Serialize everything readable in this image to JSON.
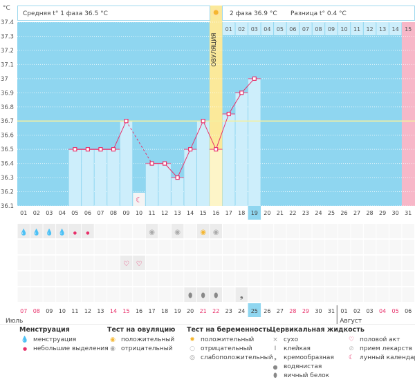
{
  "header": {
    "unit": "°C",
    "phase1": "Средняя t° 1 фаза 36.5 °C",
    "phase2": "2 фаза 36.9 °C",
    "diff": "Разница t° 0.4 °C",
    "ovulation_label": "ОВУЛЯЦИЯ"
  },
  "colors": {
    "plot_bg": "#8fd6f0",
    "bar": "#cdeefb",
    "line": "#e8306a",
    "coverline": "#f5f0a0",
    "ovulation": "#fbe99a",
    "pink": "#f7b7c8",
    "highlight": "#8fd6f0",
    "weekend": "#e8306a"
  },
  "chart_data": {
    "type": "line",
    "ylim": [
      36.1,
      37.4
    ],
    "yticks": [
      "37.4",
      "37.3",
      "37.2",
      "37.1",
      "37",
      "36.9",
      "36.8",
      "36.7",
      "36.6",
      "36.5",
      "36.4",
      "36.3",
      "36.2",
      "36.1"
    ],
    "coverline": 36.7,
    "ovulation_day": "16",
    "highlight_day": "19",
    "days": [
      "01",
      "02",
      "03",
      "04",
      "05",
      "06",
      "07",
      "08",
      "09",
      "10",
      "11",
      "12",
      "13",
      "14",
      "15",
      "16",
      "17",
      "18",
      "19",
      "20",
      "21",
      "22",
      "23",
      "24",
      "25",
      "26",
      "27",
      "28",
      "29",
      "30",
      "31"
    ],
    "temps": [
      null,
      null,
      null,
      null,
      36.5,
      36.5,
      36.5,
      36.5,
      36.7,
      null,
      36.4,
      36.4,
      36.3,
      36.5,
      36.7,
      36.5,
      36.75,
      36.9,
      37.0,
      null,
      null,
      null,
      null,
      null,
      null,
      null,
      null,
      null,
      null,
      null,
      null
    ],
    "dashed_segment": [
      "09",
      "11"
    ],
    "phase2_days": [
      "01",
      "02",
      "03",
      "04",
      "05",
      "06",
      "07",
      "08",
      "09",
      "10",
      "11",
      "12",
      "13",
      "14",
      "15"
    ]
  },
  "icon_rows": [
    [
      {
        "day": "01",
        "icon": "menstruation-icon"
      },
      {
        "day": "02",
        "icon": "menstruation-icon"
      },
      {
        "day": "03",
        "icon": "menstruation-icon"
      },
      {
        "day": "04",
        "icon": "menstruation-icon"
      },
      {
        "day": "05",
        "icon": "spotting-icon"
      },
      {
        "day": "06",
        "icon": "spotting-icon"
      },
      {
        "day": "11",
        "icon": "ovulation-test-negative-icon"
      },
      {
        "day": "13",
        "icon": "ovulation-test-negative-icon"
      },
      {
        "day": "15",
        "icon": "ovulation-test-positive-icon"
      },
      {
        "day": "16",
        "icon": "ovulation-test-negative-icon"
      }
    ],
    [],
    [
      {
        "day": "09",
        "icon": "intercourse-icon"
      },
      {
        "day": "10",
        "icon": "intercourse-icon"
      }
    ],
    [],
    [
      {
        "day": "14",
        "icon": "egg-white-icon"
      },
      {
        "day": "15",
        "icon": "egg-white-icon"
      },
      {
        "day": "16",
        "icon": "egg-white-icon"
      },
      {
        "day": "18",
        "icon": "creamy-icon"
      }
    ]
  ],
  "moon_day": "10",
  "calendar": {
    "dates": [
      "07",
      "08",
      "09",
      "10",
      "11",
      "12",
      "13",
      "14",
      "15",
      "16",
      "17",
      "18",
      "19",
      "20",
      "21",
      "22",
      "23",
      "24",
      "25",
      "26",
      "27",
      "28",
      "29",
      "30",
      "31",
      "01",
      "02",
      "03",
      "04",
      "05",
      "06"
    ],
    "weekend": [
      true,
      true,
      false,
      false,
      false,
      false,
      false,
      true,
      true,
      false,
      false,
      false,
      false,
      false,
      true,
      true,
      false,
      false,
      false,
      false,
      false,
      true,
      true,
      false,
      false,
      false,
      false,
      false,
      true,
      true,
      false
    ],
    "today": "25",
    "month1": "Июль",
    "month2": "Август"
  },
  "legend": {
    "menstruation": {
      "title": "Менструация",
      "items": [
        "менструация",
        "небольшие выделения"
      ]
    },
    "ovulation_test": {
      "title": "Тест на овуляцию",
      "items": [
        "положительный",
        "отрицательный"
      ]
    },
    "pregnancy_test": {
      "title": "Тест на беременность",
      "items": [
        "положительный",
        "отрицательный",
        "слабоположительный"
      ]
    },
    "cervical": {
      "title": "Цервикальная жидкость",
      "items": [
        "сухо",
        "клейкая",
        "кремообразная",
        "водянистая",
        "яичный белок"
      ]
    },
    "other": {
      "items": [
        "половой акт",
        "прием лекарств",
        "лунный календарь"
      ]
    }
  }
}
